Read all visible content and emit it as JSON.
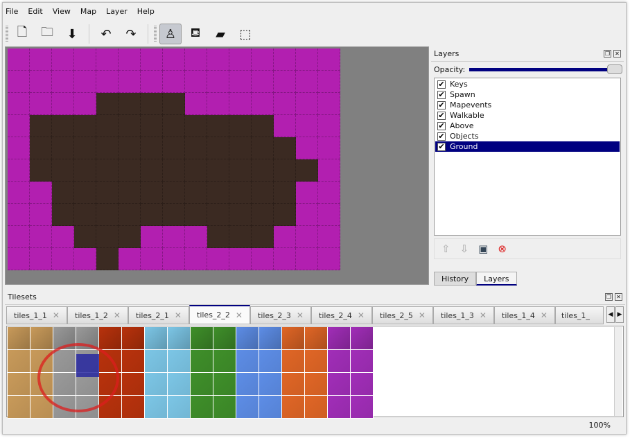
{
  "menu": [
    "File",
    "Edit",
    "View",
    "Map",
    "Layer",
    "Help"
  ],
  "toolbar": [
    {
      "name": "new-icon",
      "glyph": "🗋"
    },
    {
      "name": "open-icon",
      "glyph": "🗀"
    },
    {
      "name": "save-icon",
      "glyph": "⬇"
    },
    {
      "name": "undo-icon",
      "glyph": "↶"
    },
    {
      "name": "redo-icon",
      "glyph": "↷"
    },
    {
      "name": "stamp-brush-icon",
      "glyph": "♙",
      "active": true
    },
    {
      "name": "bucket-fill-icon",
      "glyph": "⛾"
    },
    {
      "name": "eraser-icon",
      "glyph": "▰"
    },
    {
      "name": "rect-select-icon",
      "glyph": "⬚"
    }
  ],
  "map": {
    "colors": {
      "p": "#b21fb0",
      "d": "#3b2a22"
    },
    "rows": [
      "ppppppppppppppp",
      "ppppppppppppppp",
      "ppppddddppppppp",
      "pdddddddddddppp",
      "pddddddddddddpp",
      "pdddddddddddddp",
      "ppdddddddddddpp",
      "ppdddddddddddpp",
      "pppdddpppdddppp",
      "ppppdpppppppppp"
    ]
  },
  "layers_panel": {
    "title": "Layers",
    "opacity_label": "Opacity:",
    "opacity": 1.0,
    "layers": [
      {
        "name": "Keys",
        "visible": true
      },
      {
        "name": "Spawn",
        "visible": true
      },
      {
        "name": "Mapevents",
        "visible": true
      },
      {
        "name": "Walkable",
        "visible": true
      },
      {
        "name": "Above",
        "visible": true
      },
      {
        "name": "Objects",
        "visible": true
      },
      {
        "name": "Ground",
        "visible": true,
        "selected": true
      }
    ],
    "tabs": [
      "History",
      "Layers"
    ],
    "active_tab": "Layers"
  },
  "tilesets": {
    "title": "Tilesets",
    "tabs": [
      "tiles_1_1",
      "tiles_1_2",
      "tiles_2_1",
      "tiles_2_2",
      "tiles_2_3",
      "tiles_2_4",
      "tiles_2_5",
      "tiles_1_3",
      "tiles_1_4",
      "tiles_1_"
    ],
    "active_tab": "tiles_2_2",
    "palette": [
      "#c89a5a",
      "#c89a5a",
      "#9a9a9a",
      "#9a9a9a",
      "#b8320c",
      "#b8320c",
      "#7cc6e6",
      "#7cc6e6",
      "#3f8f2a",
      "#3f8f2a",
      "#5d8de6",
      "#5d8de6",
      "#e06626",
      "#e06626",
      "#a12eb8",
      "#a12eb8"
    ]
  },
  "status": {
    "zoom": "100%"
  }
}
